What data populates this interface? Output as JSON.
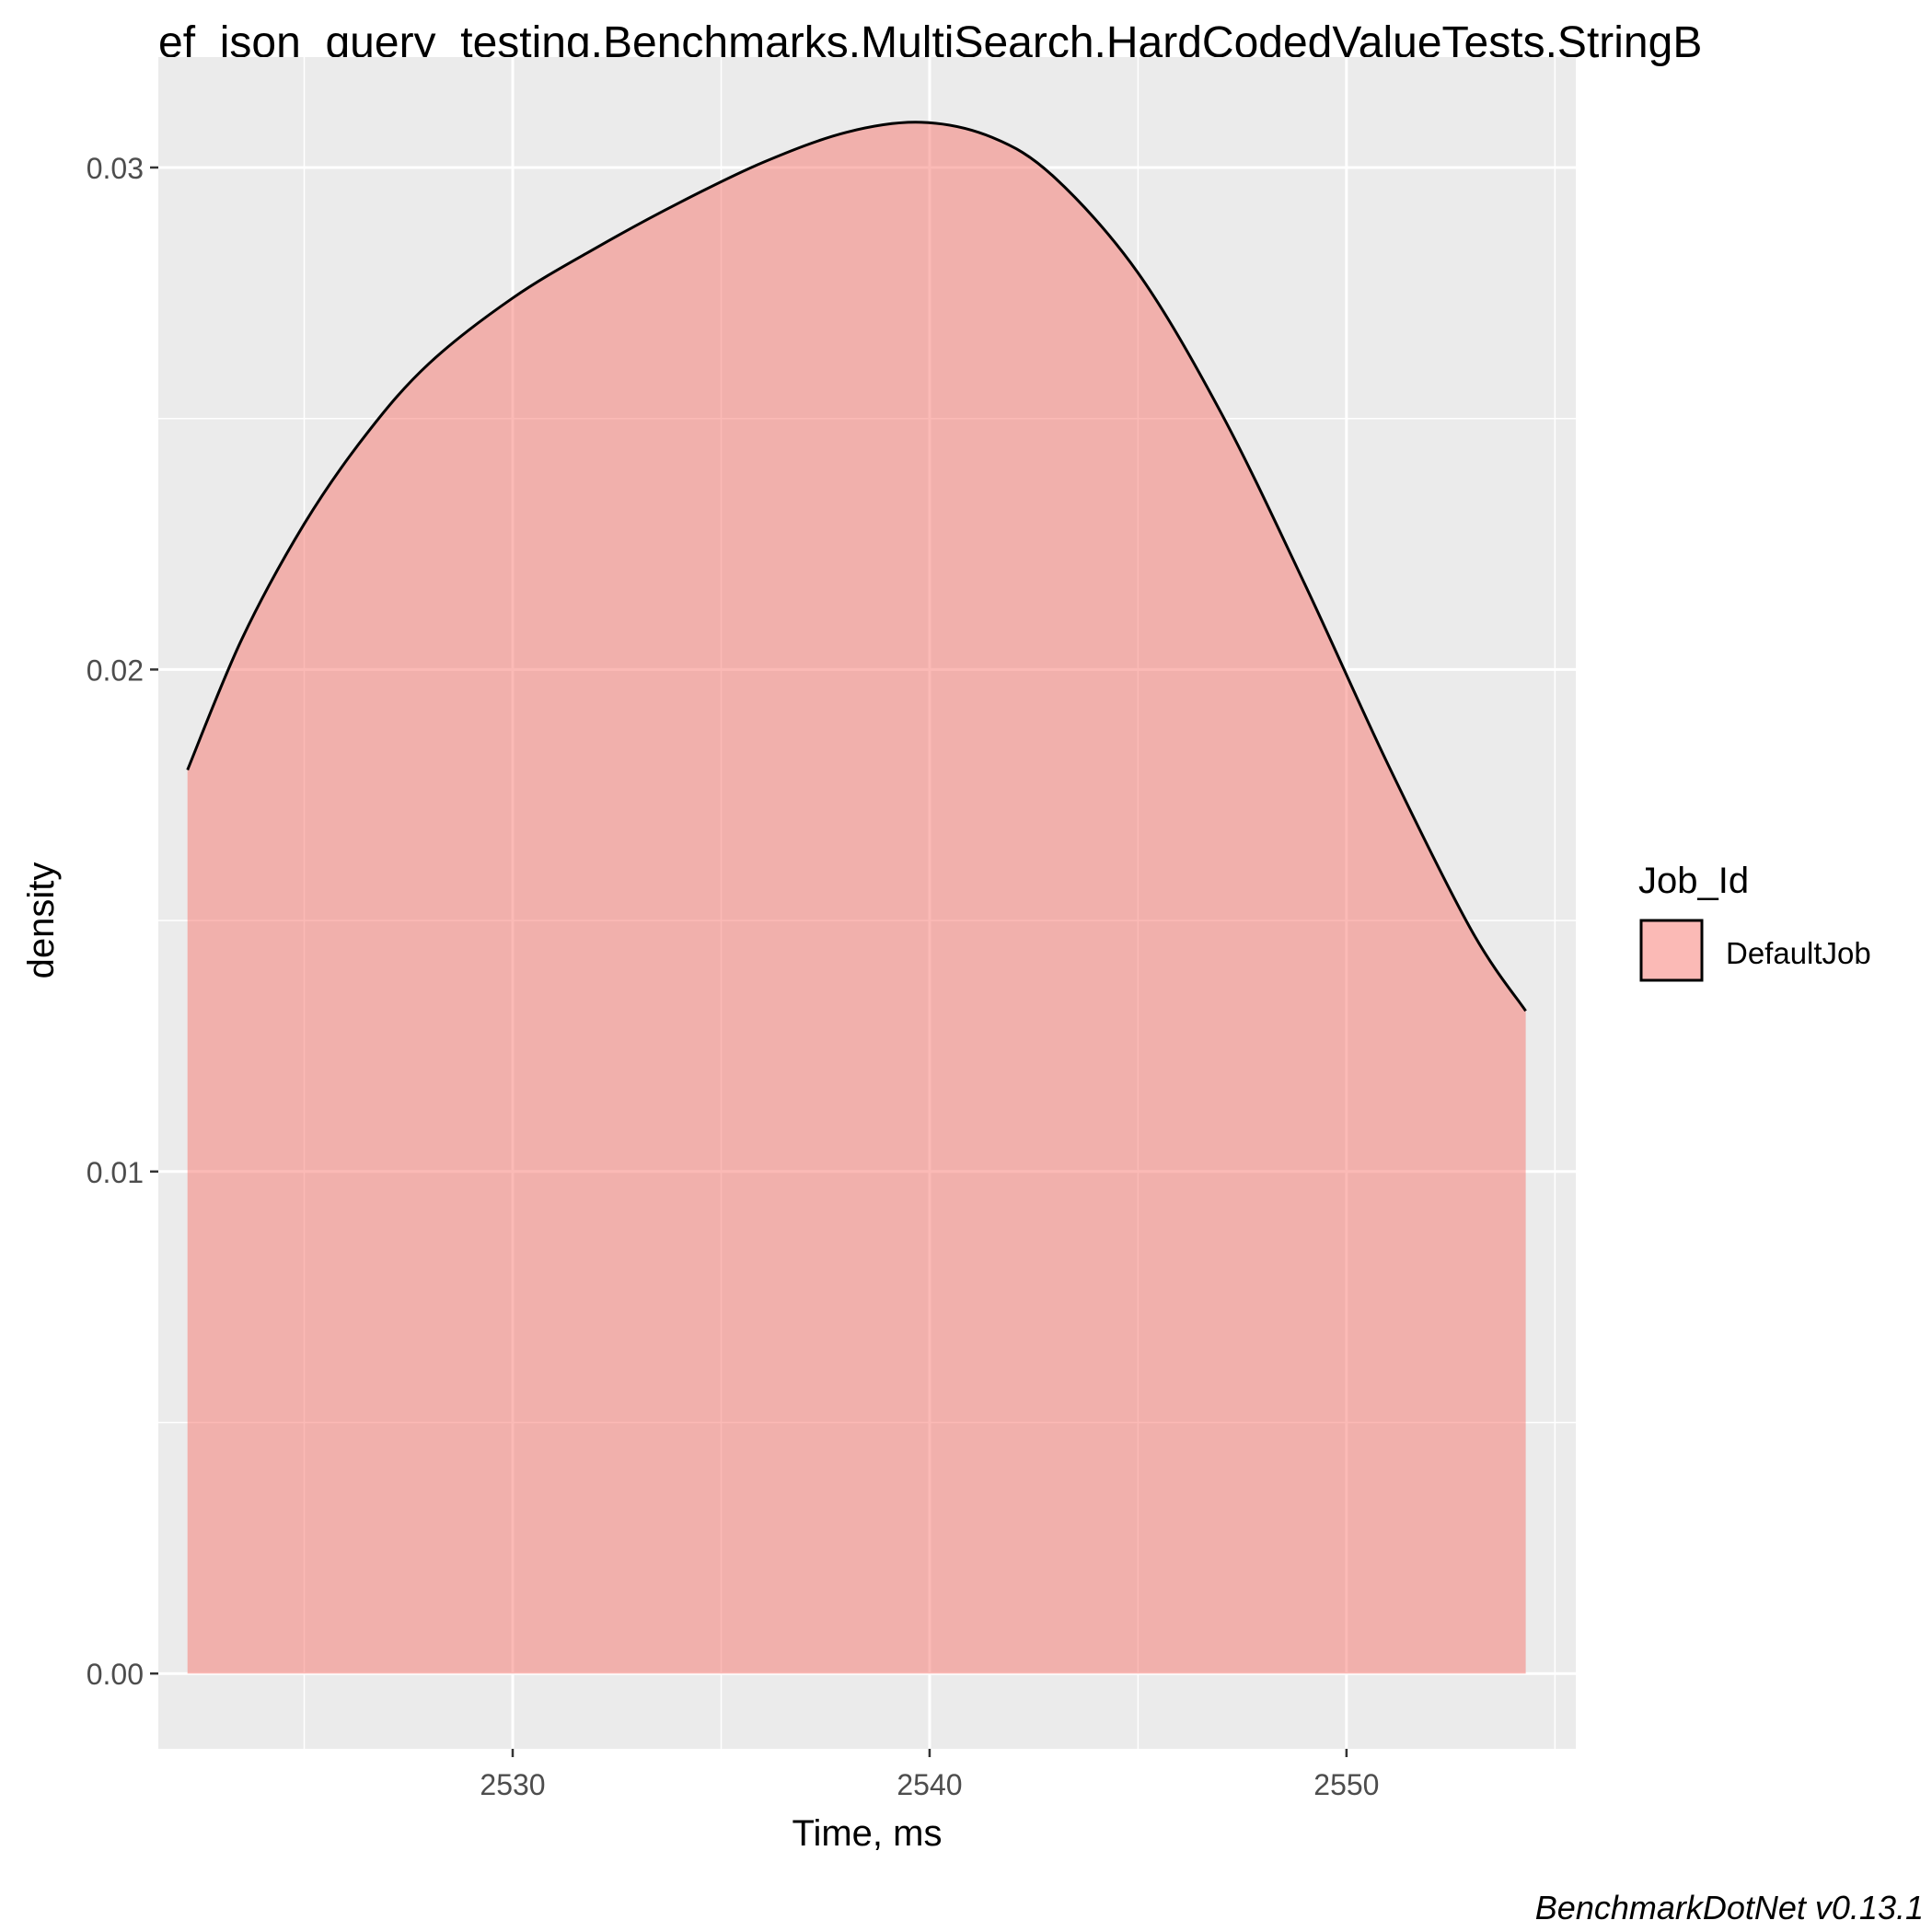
{
  "chart_data": {
    "type": "area",
    "title": "ef_json_query_testing.Benchmarks.MultiSearch.HardCodedValueTests.StringB",
    "xlabel": "Time, ms",
    "ylabel": "density",
    "xlim": [
      2521.5,
      2555.5
    ],
    "ylim": [
      -0.0015,
      0.0322
    ],
    "x_ticks": [
      2530,
      2540,
      2550
    ],
    "x_tick_labels": [
      "2530",
      "2540",
      "2550"
    ],
    "y_ticks": [
      0.0,
      0.01,
      0.02,
      0.03
    ],
    "y_tick_labels": [
      "0.00",
      "0.01",
      "0.02",
      "0.03"
    ],
    "grid": true,
    "legend": {
      "title": "Job_Id",
      "position": "right",
      "entries": [
        "DefaultJob"
      ]
    },
    "series": [
      {
        "name": "DefaultJob",
        "color": "#F8766D",
        "fill_alpha": 0.5,
        "x": [
          2522.2,
          2523.5,
          2525,
          2526.5,
          2528,
          2530,
          2532,
          2534,
          2536,
          2538,
          2539.8,
          2541.5,
          2543,
          2545,
          2547,
          2549,
          2551,
          2553,
          2554.3
        ],
        "y": [
          0.018,
          0.0206,
          0.0229,
          0.0247,
          0.0261,
          0.0274,
          0.0284,
          0.0293,
          0.0301,
          0.0307,
          0.0309,
          0.0306,
          0.0298,
          0.0279,
          0.0251,
          0.0217,
          0.0181,
          0.0148,
          0.0132
        ]
      }
    ],
    "footer": "BenchmarkDotNet v0.13.1"
  },
  "colors": {
    "panel_background": "#EBEBEB",
    "grid_line": "#FFFFFF",
    "fill": "#F8766D",
    "outline": "#000000"
  }
}
